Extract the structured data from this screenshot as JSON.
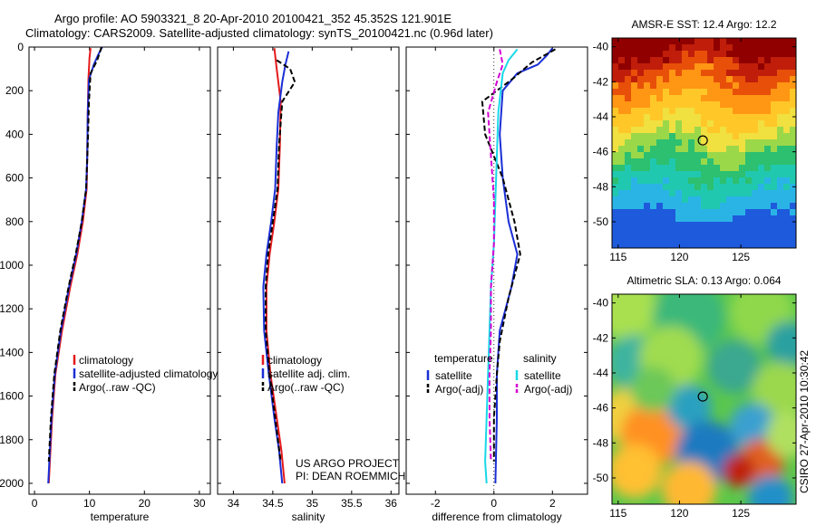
{
  "title_line1": "Argo profile: AO 5903321_8 20-Apr-2010 20100421_352 45.352S 121.901E",
  "title_line2": "Climatology: CARS2009. Satellite-adjusted climatology: synTS_20100421.nc (0.96d later)",
  "side_label": "CSIRO 27-Apr-2010 10:30:42",
  "project_line1": "US ARGO PROJECT",
  "project_line2": "PI: DEAN ROEMMICH",
  "colors": {
    "red": "#e41a1c",
    "blue": "#1a2fd6",
    "cyan": "#18d8e8",
    "magenta": "#d400d4",
    "black": "#000000"
  },
  "chart_data": [
    {
      "type": "line",
      "xlabel": "temperature",
      "ylabel": "",
      "xlim": [
        -1,
        32
      ],
      "ylim": [
        2050,
        0
      ],
      "x_ticks": [
        0,
        10,
        20,
        30
      ],
      "y_ticks": [
        0,
        200,
        400,
        600,
        800,
        1000,
        1200,
        1400,
        1600,
        1800,
        2000
      ],
      "legend": [
        "climatology",
        "satellite-adjusted climatology",
        "Argo(..raw -QC)"
      ],
      "series": [
        {
          "name": "climatology",
          "color": "red",
          "dash": "",
          "points": [
            [
              10.2,
              5
            ],
            [
              10,
              50
            ],
            [
              9.8,
              150
            ],
            [
              9.7,
              300
            ],
            [
              9.6,
              500
            ],
            [
              9.5,
              650
            ],
            [
              8.8,
              800
            ],
            [
              7.8,
              950
            ],
            [
              6.5,
              1100
            ],
            [
              5,
              1300
            ],
            [
              3.8,
              1500
            ],
            [
              3.2,
              1700
            ],
            [
              2.8,
              1900
            ],
            [
              2.6,
              2000
            ]
          ]
        },
        {
          "name": "satellite-adjusted climatology",
          "color": "blue",
          "dash": "",
          "points": [
            [
              12.3,
              0
            ],
            [
              11.5,
              40
            ],
            [
              10.8,
              80
            ],
            [
              9.9,
              150
            ],
            [
              9.7,
              300
            ],
            [
              9.6,
              500
            ],
            [
              9.4,
              650
            ],
            [
              8.6,
              800
            ],
            [
              7.6,
              950
            ],
            [
              6.3,
              1100
            ],
            [
              4.8,
              1300
            ],
            [
              3.7,
              1500
            ],
            [
              3.1,
              1700
            ],
            [
              2.7,
              1900
            ],
            [
              2.5,
              2000
            ]
          ]
        },
        {
          "name": "Argo(..raw -QC)",
          "color": "black",
          "dash": "6,3",
          "points": [
            [
              12.2,
              0
            ],
            [
              11.4,
              60
            ],
            [
              10.2,
              120
            ],
            [
              9.9,
              250
            ],
            [
              9.7,
              450
            ],
            [
              9.4,
              650
            ],
            [
              8.6,
              800
            ],
            [
              7.5,
              950
            ],
            [
              6.2,
              1100
            ],
            [
              4.7,
              1300
            ],
            [
              3.6,
              1500
            ],
            [
              3,
              1700
            ],
            [
              2.6,
              1900
            ]
          ]
        }
      ]
    },
    {
      "type": "line",
      "xlabel": "salinity",
      "ylabel": "",
      "xlim": [
        33.8,
        36.1
      ],
      "ylim": [
        2050,
        0
      ],
      "x_ticks": [
        34,
        34.5,
        35,
        35.5,
        36
      ],
      "y_ticks": [
        0,
        200,
        400,
        600,
        800,
        1000,
        1200,
        1400,
        1600,
        1800,
        2000
      ],
      "legend": [
        "climatology",
        "satellite adj. clim.",
        "Argo(..raw -QC)"
      ],
      "series": [
        {
          "name": "climatology",
          "color": "red",
          "dash": "",
          "points": [
            [
              34.52,
              5
            ],
            [
              34.55,
              100
            ],
            [
              34.6,
              250
            ],
            [
              34.59,
              450
            ],
            [
              34.57,
              650
            ],
            [
              34.52,
              800
            ],
            [
              34.46,
              950
            ],
            [
              34.42,
              1100
            ],
            [
              34.42,
              1300
            ],
            [
              34.47,
              1500
            ],
            [
              34.55,
              1700
            ],
            [
              34.61,
              1850
            ],
            [
              34.65,
              2000
            ]
          ]
        },
        {
          "name": "satellite adj. clim.",
          "color": "blue",
          "dash": "",
          "points": [
            [
              34.7,
              20
            ],
            [
              34.66,
              80
            ],
            [
              34.62,
              160
            ],
            [
              34.57,
              300
            ],
            [
              34.55,
              450
            ],
            [
              34.53,
              650
            ],
            [
              34.48,
              800
            ],
            [
              34.42,
              950
            ],
            [
              34.38,
              1100
            ],
            [
              34.39,
              1300
            ],
            [
              34.45,
              1500
            ],
            [
              34.52,
              1700
            ],
            [
              34.58,
              1850
            ],
            [
              34.62,
              2000
            ]
          ]
        },
        {
          "name": "Argo(..raw -QC)",
          "color": "black",
          "dash": "6,3",
          "points": [
            [
              34.55,
              60
            ],
            [
              34.72,
              100
            ],
            [
              34.78,
              160
            ],
            [
              34.62,
              250
            ],
            [
              34.58,
              450
            ],
            [
              34.56,
              650
            ],
            [
              34.5,
              800
            ],
            [
              34.44,
              950
            ],
            [
              34.41,
              1100
            ],
            [
              34.41,
              1300
            ],
            [
              34.46,
              1500
            ],
            [
              34.53,
              1700
            ],
            [
              34.6,
              1900
            ]
          ]
        }
      ]
    },
    {
      "type": "line",
      "xlabel": "difference from climatology",
      "ylabel": "",
      "xlim": [
        -3,
        3.2
      ],
      "ylim": [
        2050,
        0
      ],
      "x_ticks": [
        -2,
        0,
        2
      ],
      "y_ticks": [
        0,
        200,
        400,
        600,
        800,
        1000,
        1200,
        1400,
        1600,
        1800,
        2000
      ],
      "legend_titles": [
        "temperature",
        "salinity"
      ],
      "legend": [
        "satellite",
        "Argo(-adj)",
        "satellite",
        "Argo(-adj)"
      ],
      "series": [
        {
          "name": "temperature satellite",
          "color": "blue",
          "dash": "",
          "points": [
            [
              2,
              5
            ],
            [
              1.8,
              40
            ],
            [
              1.5,
              80
            ],
            [
              0.8,
              120
            ],
            [
              0.3,
              200
            ],
            [
              0.2,
              400
            ],
            [
              0.3,
              600
            ],
            [
              0.5,
              800
            ],
            [
              0.8,
              950
            ],
            [
              0.6,
              1100
            ],
            [
              0.2,
              1300
            ],
            [
              0.1,
              1500
            ],
            [
              0.1,
              1700
            ],
            [
              0.05,
              2000
            ]
          ]
        },
        {
          "name": "temperature Argo(-adj)",
          "color": "black",
          "dash": "6,3",
          "points": [
            [
              2.1,
              10
            ],
            [
              1.3,
              70
            ],
            [
              0.6,
              150
            ],
            [
              -0.4,
              250
            ],
            [
              -0.3,
              400
            ],
            [
              0.3,
              600
            ],
            [
              0.7,
              800
            ],
            [
              0.9,
              950
            ],
            [
              0.5,
              1150
            ],
            [
              0.2,
              1350
            ],
            [
              0.1,
              1500
            ],
            [
              0,
              1700
            ],
            [
              0,
              1900
            ]
          ]
        },
        {
          "name": "salinity satellite",
          "color": "cyan",
          "dash": "",
          "points": [
            [
              0.8,
              10
            ],
            [
              0.5,
              60
            ],
            [
              0.3,
              120
            ],
            [
              0.15,
              300
            ],
            [
              0.1,
              500
            ],
            [
              0.05,
              700
            ],
            [
              0,
              900
            ],
            [
              -0.1,
              1100
            ],
            [
              -0.15,
              1300
            ],
            [
              -0.2,
              1500
            ],
            [
              -0.25,
              1700
            ],
            [
              -0.3,
              1900
            ],
            [
              -0.25,
              2000
            ]
          ]
        },
        {
          "name": "salinity Argo(-adj)",
          "color": "magenta",
          "dash": "6,3",
          "points": [
            [
              0.2,
              10
            ],
            [
              0.3,
              80
            ],
            [
              0.1,
              160
            ],
            [
              -0.2,
              300
            ],
            [
              -0.1,
              500
            ],
            [
              0,
              700
            ],
            [
              0,
              900
            ],
            [
              -0.1,
              1100
            ],
            [
              -0.1,
              1300
            ],
            [
              -0.15,
              1500
            ],
            [
              -0.15,
              1700
            ],
            [
              -0.1,
              1900
            ]
          ]
        }
      ]
    },
    {
      "type": "heatmap",
      "title": "AMSR-E SST: 12.4  Argo: 12.2",
      "xlim": [
        114.5,
        129.5
      ],
      "ylim": [
        -51.5,
        -39.5
      ],
      "x_ticks": [
        115,
        120,
        125
      ],
      "y_ticks": [
        -40,
        -42,
        -44,
        -46,
        -48,
        -50
      ],
      "marker": [
        121.9,
        -45.35
      ]
    },
    {
      "type": "heatmap",
      "title": "Altimetric SLA: 0.13  Argo: 0.064",
      "xlim": [
        114.5,
        129.5
      ],
      "ylim": [
        -51.5,
        -39.5
      ],
      "x_ticks": [
        115,
        120,
        125
      ],
      "y_ticks": [
        -40,
        -42,
        -44,
        -46,
        -48,
        -50
      ],
      "marker": [
        121.9,
        -45.35
      ]
    }
  ]
}
